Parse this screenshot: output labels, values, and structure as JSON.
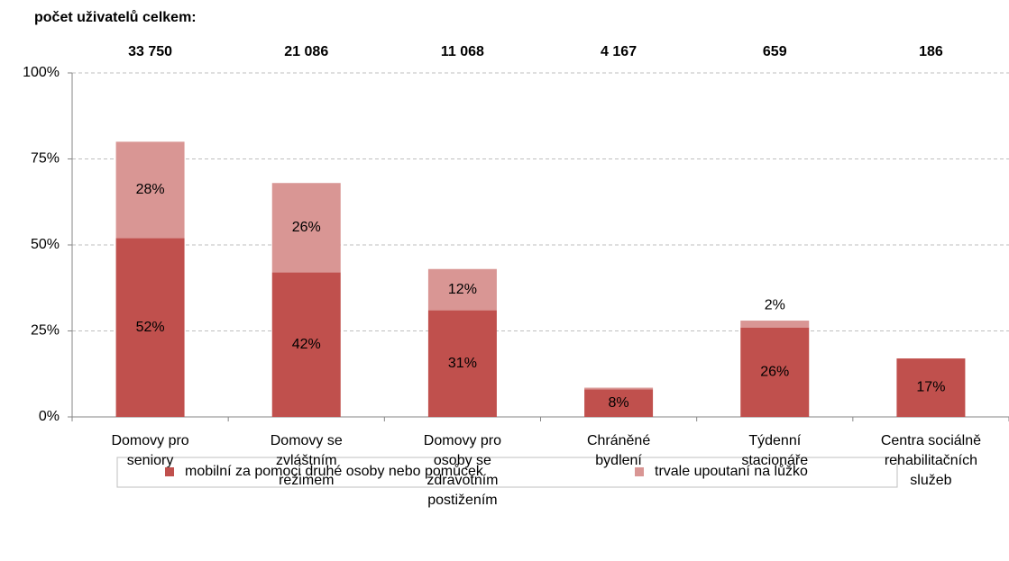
{
  "chart_data": {
    "type": "stacked_bar",
    "subtitle": "počet uživatelů celkem:",
    "user_totals": [
      "33 750",
      "21 086",
      "11 068",
      "4 167",
      "659",
      "186"
    ],
    "categories": [
      "Domovy pro\nseniory",
      "Domovy se\nzvláštním\nrežimem",
      "Domovy pro\nosoby se\nzdravotním\npostižením",
      "Chráněné\nbydlení",
      "Týdenní\nstacionáře",
      "Centra sociálně\nrehabilitačních\nslužeb"
    ],
    "series": [
      {
        "name": "mobilní za pomoci druhé osoby nebo pomůcek",
        "color": "#c0504d",
        "label_color": "#ffffff",
        "values": [
          52,
          42,
          31,
          8,
          26,
          17
        ],
        "value_labels": [
          "52%",
          "42%",
          "31%",
          "8%",
          "26%",
          "17%"
        ]
      },
      {
        "name": "trvale upoutaní na lůžko",
        "color": "#d99694",
        "label_color": "#000000",
        "values": [
          28,
          26,
          12,
          0.5,
          2,
          null
        ],
        "value_labels": [
          "28%",
          "26%",
          "12%",
          null,
          "2%",
          null
        ]
      }
    ],
    "ylim": [
      0,
      100
    ],
    "yticks": [
      {
        "value": 0,
        "label": "0%"
      },
      {
        "value": 25,
        "label": "25%"
      },
      {
        "value": 50,
        "label": "50%"
      },
      {
        "value": 75,
        "label": "75%"
      },
      {
        "value": 100,
        "label": "100%"
      }
    ],
    "grid": true,
    "legend": "bottom"
  }
}
